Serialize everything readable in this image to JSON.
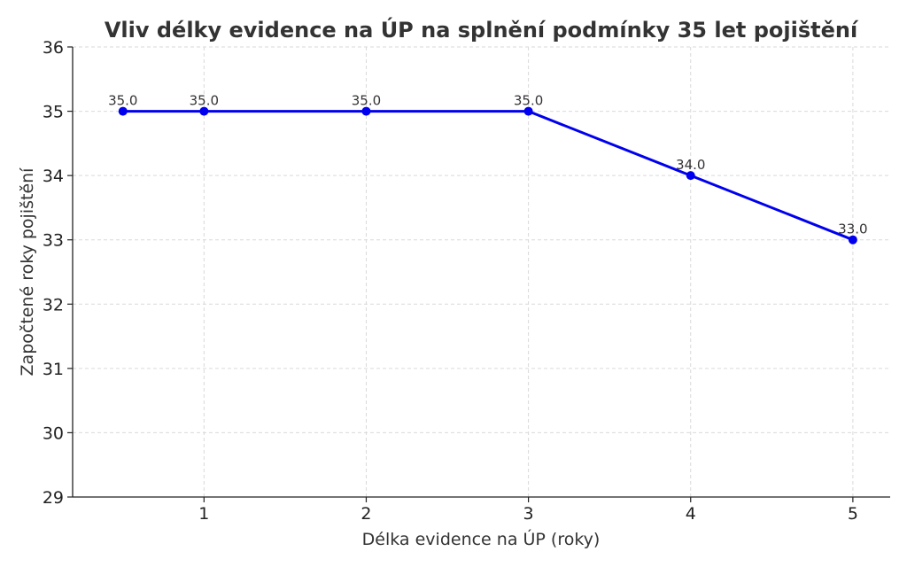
{
  "chart_data": {
    "type": "line",
    "title": "Vliv délky evidence na ÚP na splnění podmínky 35 let pojištění",
    "xlabel": "Délka evidence na ÚP (roky)",
    "ylabel": "Započtené roky pojištění",
    "x": [
      0.5,
      1,
      2,
      3,
      4,
      5
    ],
    "xticks": [
      1,
      2,
      3,
      4,
      5
    ],
    "xlim": [
      0.19,
      5.23
    ],
    "ylim": [
      29,
      36
    ],
    "yticks": [
      29,
      30,
      31,
      32,
      33,
      34,
      35,
      36
    ],
    "grid": true,
    "series": [
      {
        "values": [
          35,
          35,
          35,
          35,
          34,
          33
        ],
        "data_labels": [
          "35.0",
          "35.0",
          "35.0",
          "35.0",
          "34.0",
          "33.0"
        ],
        "color": "#0000ee"
      }
    ]
  }
}
